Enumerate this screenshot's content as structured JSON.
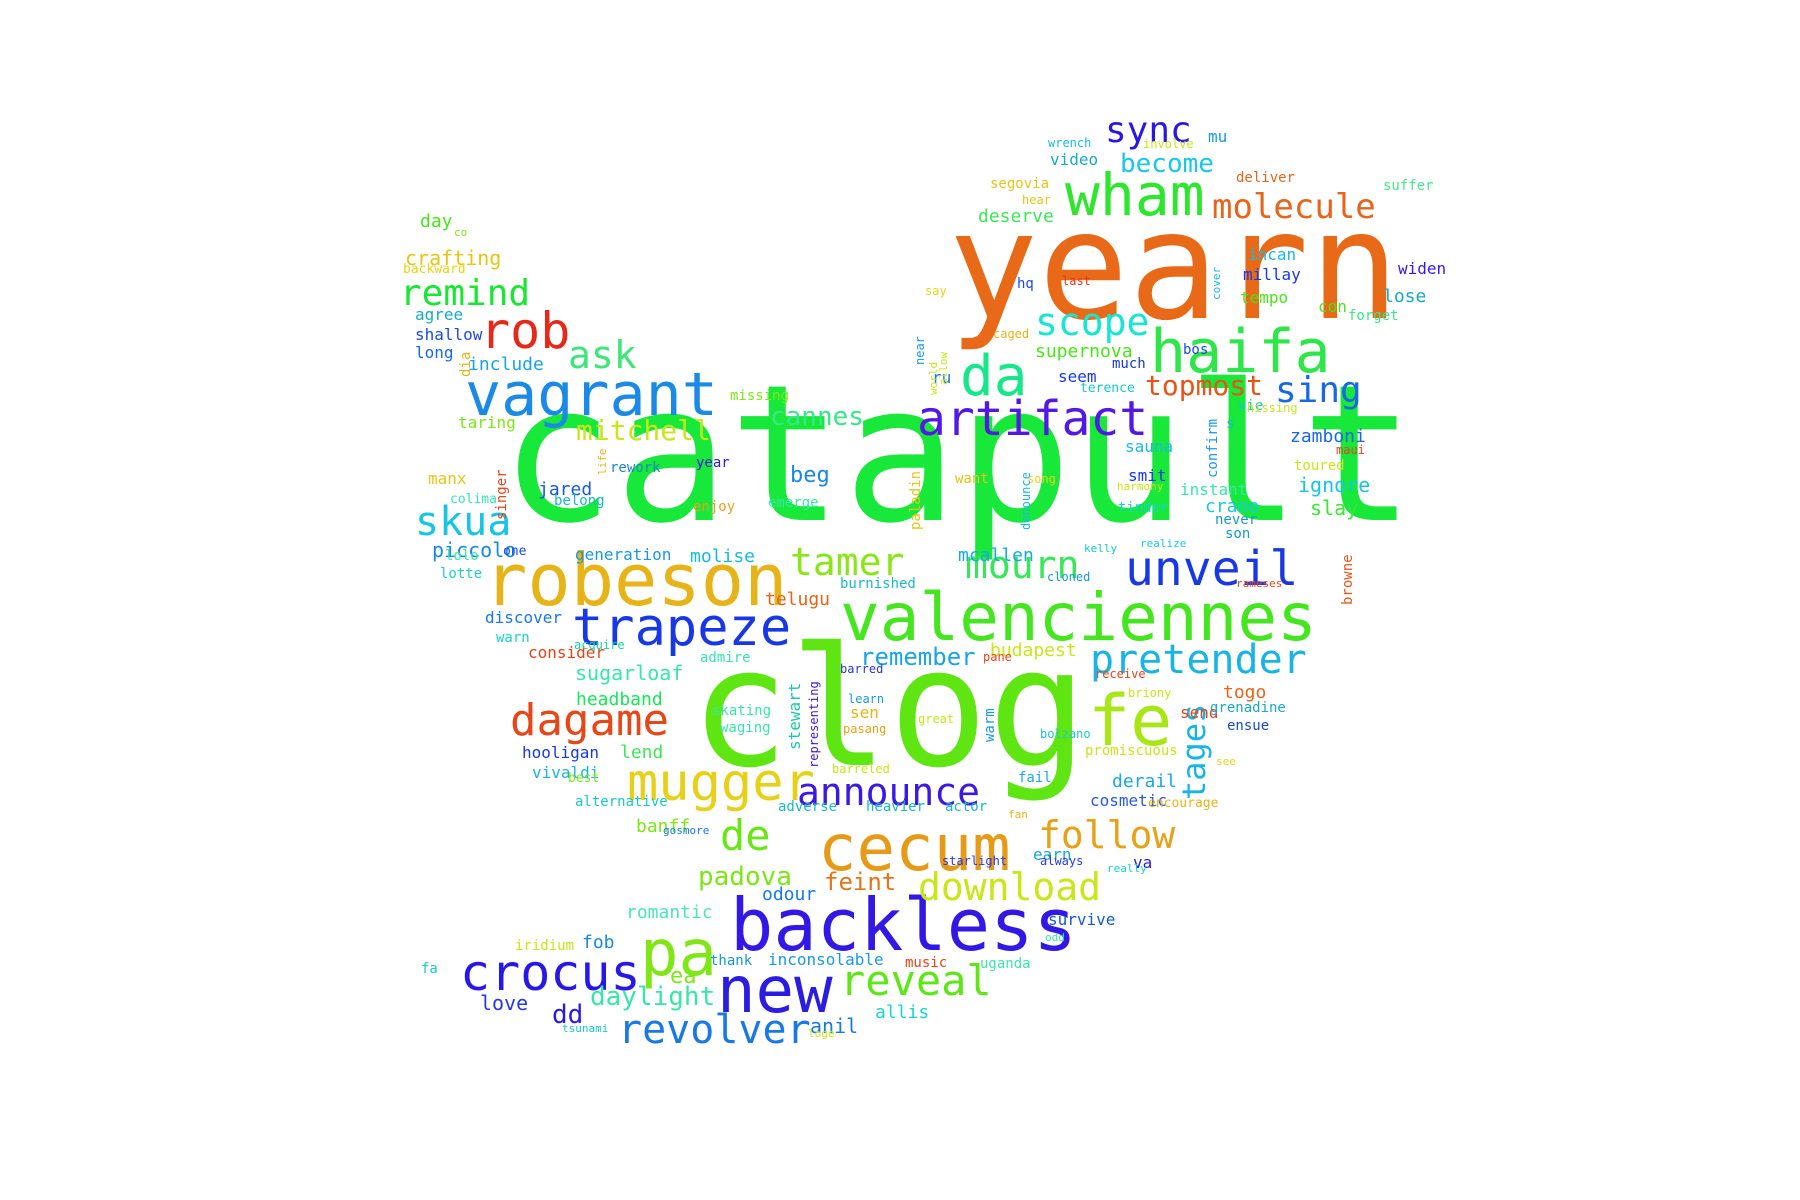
{
  "words": [
    {
      "text": "catapult",
      "color": "#17e83a"
    },
    {
      "text": "clog",
      "color": "#5fe612"
    },
    {
      "text": "yearn",
      "color": "#e86a18"
    },
    {
      "text": "backless",
      "color": "#3218e6"
    },
    {
      "text": "new",
      "color": "#2a1ce0"
    },
    {
      "text": "robeson",
      "color": "#e6b418"
    },
    {
      "text": "valenciennes",
      "color": "#45e620"
    },
    {
      "text": "cecum",
      "color": "#e69b18"
    },
    {
      "text": "vagrant",
      "color": "#1b8ae6"
    },
    {
      "text": "haifa",
      "color": "#2ee64a"
    },
    {
      "text": "wham",
      "color": "#2ee62e"
    },
    {
      "text": "mugger",
      "color": "#e6d018"
    },
    {
      "text": "pa",
      "color": "#80e618"
    },
    {
      "text": "fe",
      "color": "#a8e618"
    },
    {
      "text": "da",
      "color": "#18e68a"
    },
    {
      "text": "artifact",
      "color": "#5218e6"
    },
    {
      "text": "trapeze",
      "color": "#1838e6"
    },
    {
      "text": "unveil",
      "color": "#1838e6"
    },
    {
      "text": "crocus",
      "color": "#2818e6"
    },
    {
      "text": "dagame",
      "color": "#e64618"
    },
    {
      "text": "revolver",
      "color": "#1878e6"
    },
    {
      "text": "reveal",
      "color": "#5ee618"
    },
    {
      "text": "announce",
      "color": "#3a18e6"
    },
    {
      "text": "pretender",
      "color": "#18b4e6"
    },
    {
      "text": "download",
      "color": "#c8e618"
    },
    {
      "text": "follow",
      "color": "#e6a218"
    },
    {
      "text": "de",
      "color": "#6ae618"
    },
    {
      "text": "rob",
      "color": "#e62818"
    },
    {
      "text": "scope",
      "color": "#18e6d4"
    },
    {
      "text": "molecule",
      "color": "#e6641c"
    },
    {
      "text": "mourn",
      "color": "#38e65a"
    },
    {
      "text": "tamer",
      "color": "#8ae618"
    },
    {
      "text": "skua",
      "color": "#18c4e6"
    },
    {
      "text": "remind",
      "color": "#18e632"
    },
    {
      "text": "sync",
      "color": "#2818e6"
    },
    {
      "text": "sing",
      "color": "#1868e6"
    },
    {
      "text": "ask",
      "color": "#3ee678"
    },
    {
      "text": "tages",
      "color": "#18b4e6"
    },
    {
      "text": "become",
      "color": "#18c8e6"
    },
    {
      "text": "topmost",
      "color": "#e65418"
    },
    {
      "text": "mitchell",
      "color": "#c8e618"
    },
    {
      "text": "cannes",
      "color": "#38e688"
    },
    {
      "text": "remember",
      "color": "#18a4e6"
    },
    {
      "text": "padova",
      "color": "#7ee618"
    },
    {
      "text": "daylight",
      "color": "#38e6a8"
    },
    {
      "text": "beg",
      "color": "#1888e6"
    },
    {
      "text": "deserve",
      "color": "#3ee658"
    },
    {
      "text": "supernova",
      "color": "#48e618"
    },
    {
      "text": "feint",
      "color": "#e67418"
    },
    {
      "text": "zamboni",
      "color": "#1868e6"
    },
    {
      "text": "ignore",
      "color": "#18c4e6"
    },
    {
      "text": "slay",
      "color": "#38e638"
    },
    {
      "text": "crafting",
      "color": "#e6c418"
    },
    {
      "text": "day",
      "color": "#48e618"
    },
    {
      "text": "agree",
      "color": "#18a8c8"
    },
    {
      "text": "shallow",
      "color": "#1848e6"
    },
    {
      "text": "long",
      "color": "#1868e6"
    },
    {
      "text": "include",
      "color": "#18a4e6"
    },
    {
      "text": "jared",
      "color": "#1858e6"
    },
    {
      "text": "piccolo",
      "color": "#1888e6"
    },
    {
      "text": "discover",
      "color": "#1878e6"
    },
    {
      "text": "warn",
      "color": "#18d4c4"
    },
    {
      "text": "consider",
      "color": "#e64418"
    },
    {
      "text": "sugarloaf",
      "color": "#38e6a8"
    },
    {
      "text": "headband",
      "color": "#18e658"
    },
    {
      "text": "hooligan",
      "color": "#1838e6"
    },
    {
      "text": "vivaldi",
      "color": "#18b4e6"
    },
    {
      "text": "lend",
      "color": "#3ee658"
    },
    {
      "text": "banff",
      "color": "#7ee618"
    },
    {
      "text": "telugu",
      "color": "#e66418"
    },
    {
      "text": "generation",
      "color": "#1898e6"
    },
    {
      "text": "molise",
      "color": "#18b8e6"
    },
    {
      "text": "mcallen",
      "color": "#18a8e6"
    },
    {
      "text": "budapest",
      "color": "#c8e618"
    },
    {
      "text": "togo",
      "color": "#e66418"
    },
    {
      "text": "send",
      "color": "#e64418"
    },
    {
      "text": "derail",
      "color": "#18a8e6"
    },
    {
      "text": "cosmetic",
      "color": "#2858e6"
    },
    {
      "text": "earn",
      "color": "#18a8c8"
    },
    {
      "text": "va",
      "color": "#2818e6"
    },
    {
      "text": "odour",
      "color": "#1878e6"
    },
    {
      "text": "romantic",
      "color": "#48e6b8"
    },
    {
      "text": "fob",
      "color": "#1888e6"
    },
    {
      "text": "ea",
      "color": "#7ee618"
    },
    {
      "text": "dd",
      "color": "#2818e6"
    },
    {
      "text": "love",
      "color": "#2838e6"
    },
    {
      "text": "anil",
      "color": "#1878e6"
    },
    {
      "text": "allis",
      "color": "#18d4d4"
    },
    {
      "text": "thank",
      "color": "#1898c8"
    },
    {
      "text": "inconsolable",
      "color": "#1898e6"
    },
    {
      "text": "music",
      "color": "#e64418"
    },
    {
      "text": "uganda",
      "color": "#38e6a8"
    },
    {
      "text": "survive",
      "color": "#1858c8"
    },
    {
      "text": "seem",
      "color": "#1838e6"
    },
    {
      "text": "much",
      "color": "#1838c8"
    },
    {
      "text": "sauna",
      "color": "#18b8e6"
    },
    {
      "text": "smit",
      "color": "#1838e6"
    },
    {
      "text": "instant",
      "color": "#38e6a8"
    },
    {
      "text": "crane",
      "color": "#18c8e6"
    },
    {
      "text": "never",
      "color": "#1898c8"
    },
    {
      "text": "son",
      "color": "#1898c8"
    },
    {
      "text": "confirm",
      "color": "#1898e6"
    },
    {
      "text": "vie",
      "color": "#18c8c8"
    },
    {
      "text": "s",
      "color": "#18b8c8"
    },
    {
      "text": "lose",
      "color": "#18a8c8"
    },
    {
      "text": "tempo",
      "color": "#48e618"
    },
    {
      "text": "con",
      "color": "#48e618"
    },
    {
      "text": "forget",
      "color": "#38e688"
    },
    {
      "text": "millay",
      "color": "#1838e6"
    },
    {
      "text": "incan",
      "color": "#18b8e6"
    },
    {
      "text": "widen",
      "color": "#3818e6"
    },
    {
      "text": "suffer",
      "color": "#48e688"
    },
    {
      "text": "deliver",
      "color": "#e66418"
    },
    {
      "text": "mu",
      "color": "#1898e6"
    },
    {
      "text": "video",
      "color": "#18a8c8"
    },
    {
      "text": "wrench",
      "color": "#18b8e6"
    },
    {
      "text": "involve",
      "color": "#c8e618"
    },
    {
      "text": "segovia",
      "color": "#e6c418"
    },
    {
      "text": "hear",
      "color": "#e6c418"
    },
    {
      "text": "hq",
      "color": "#1848e6"
    },
    {
      "text": "last",
      "color": "#e63418"
    },
    {
      "text": "bos",
      "color": "#1848e6"
    },
    {
      "text": "cover",
      "color": "#18b8e6"
    },
    {
      "text": "caged",
      "color": "#e6b418"
    },
    {
      "text": "say",
      "color": "#e6d418"
    },
    {
      "text": "ru",
      "color": "#1878e6"
    },
    {
      "text": "near",
      "color": "#1898e6"
    },
    {
      "text": "world",
      "color": "#c8e618"
    },
    {
      "text": "allow",
      "color": "#c8e618"
    },
    {
      "text": "terence",
      "color": "#18c8c8"
    },
    {
      "text": "hissing",
      "color": "#c8e618"
    },
    {
      "text": "toured",
      "color": "#c8e618"
    },
    {
      "text": "maui",
      "color": "#e64418"
    },
    {
      "text": "missing",
      "color": "#7ee618"
    },
    {
      "text": "taring",
      "color": "#7ee618"
    },
    {
      "text": "dia",
      "color": "#e6b418"
    },
    {
      "text": "manx",
      "color": "#e6c418"
    },
    {
      "text": "colima",
      "color": "#38e6b8"
    },
    {
      "text": "singer",
      "color": "#e64418"
    },
    {
      "text": "life",
      "color": "#e6b418"
    },
    {
      "text": "rework",
      "color": "#1888c8"
    },
    {
      "text": "year",
      "color": "#2818e6"
    },
    {
      "text": "belong",
      "color": "#18b8c8"
    },
    {
      "text": "lolo",
      "color": "#38e6a8"
    },
    {
      "text": "lotte",
      "color": "#18d4c4"
    },
    {
      "text": "one",
      "color": "#1848e6"
    },
    {
      "text": "paladin",
      "color": "#e6c418"
    },
    {
      "text": "want",
      "color": "#e6c418"
    },
    {
      "text": "enjoy",
      "color": "#e6a218"
    },
    {
      "text": "emerge",
      "color": "#38e6a8"
    },
    {
      "text": "song",
      "color": "#e6d418"
    },
    {
      "text": "harmony",
      "color": "#c8e618"
    },
    {
      "text": "tinder",
      "color": "#18d4c4"
    },
    {
      "text": "denounce",
      "color": "#18b8e6"
    },
    {
      "text": "kelly",
      "color": "#18c8c8"
    },
    {
      "text": "realize",
      "color": "#18c8e6"
    },
    {
      "text": "rameses",
      "color": "#e64418"
    },
    {
      "text": "browne",
      "color": "#e65418"
    },
    {
      "text": "burnished",
      "color": "#18b8c8"
    },
    {
      "text": "cloned",
      "color": "#1898c8"
    },
    {
      "text": "acquire",
      "color": "#18d4a8"
    },
    {
      "text": "admire",
      "color": "#38e6a8"
    },
    {
      "text": "barred",
      "color": "#2838c8"
    },
    {
      "text": "pane",
      "color": "#e64418"
    },
    {
      "text": "receive",
      "color": "#e64418"
    },
    {
      "text": "briony",
      "color": "#c8e618"
    },
    {
      "text": "grenadine",
      "color": "#18a8c8"
    },
    {
      "text": "ensue",
      "color": "#1848c8"
    },
    {
      "text": "learn",
      "color": "#1898e6"
    },
    {
      "text": "pasang",
      "color": "#e6a218"
    },
    {
      "text": "great",
      "color": "#c8e618"
    },
    {
      "text": "warm",
      "color": "#1898e6"
    },
    {
      "text": "bolzano",
      "color": "#18c8c8"
    },
    {
      "text": "promiscuous",
      "color": "#c8e618"
    },
    {
      "text": "see",
      "color": "#e6d418"
    },
    {
      "text": "stewart",
      "color": "#18c8a8"
    },
    {
      "text": "representing",
      "color": "#3818e6"
    },
    {
      "text": "skating",
      "color": "#38e6a8"
    },
    {
      "text": "waging",
      "color": "#38e6a8"
    },
    {
      "text": "sen",
      "color": "#e6b418"
    },
    {
      "text": "barreled",
      "color": "#c8e618"
    },
    {
      "text": "fail",
      "color": "#18a8e6"
    },
    {
      "text": "best",
      "color": "#7ee618"
    },
    {
      "text": "alternative",
      "color": "#18c8c8"
    },
    {
      "text": "adverse",
      "color": "#18b8c8"
    },
    {
      "text": "heavier",
      "color": "#18b8c8"
    },
    {
      "text": "actor",
      "color": "#18b8c8"
    },
    {
      "text": "fan",
      "color": "#e6b418"
    },
    {
      "text": "encourage",
      "color": "#e6b418"
    },
    {
      "text": "gosmore",
      "color": "#1878e6"
    },
    {
      "text": "starlight",
      "color": "#2838e6"
    },
    {
      "text": "always",
      "color": "#2838e6"
    },
    {
      "text": "really",
      "color": "#18d4c4"
    },
    {
      "text": "iridium",
      "color": "#c8e618"
    },
    {
      "text": "odd",
      "color": "#38e6a8"
    },
    {
      "text": "fa",
      "color": "#18c8c8"
    },
    {
      "text": "tsunami",
      "color": "#18c8c8"
    },
    {
      "text": "loge",
      "color": "#c8e618"
    },
    {
      "text": "co",
      "color": "#7ee618"
    },
    {
      "text": "backward",
      "color": "#e6d418"
    }
  ]
}
